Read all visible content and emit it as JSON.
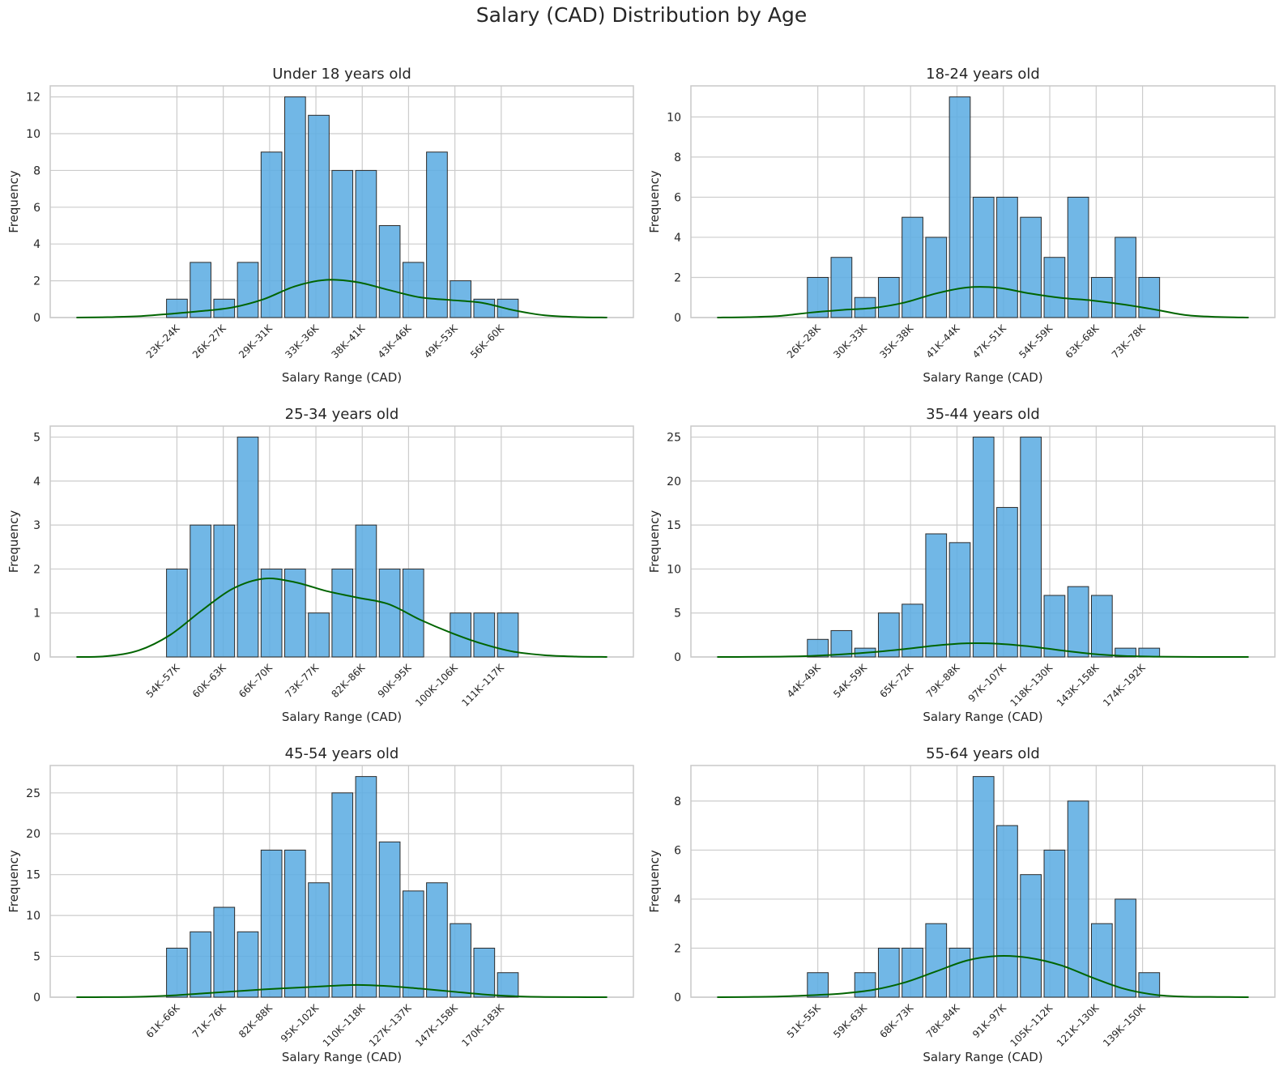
{
  "title": "Salary (CAD) Distribution by Age",
  "colors": {
    "bar_fill": "#5DADE2",
    "bar_edge": "#2b2b2b",
    "kde": "#006400",
    "grid": "#cccccc",
    "frame": "#c8c8c8"
  },
  "chart_data": [
    {
      "type": "bar",
      "title": "Under 18 years old",
      "xlabel": "Salary Range (CAD)",
      "ylabel": "Frequency",
      "ylim": [
        0,
        12.6
      ],
      "yticks": [
        0,
        2,
        4,
        6,
        8,
        10,
        12
      ],
      "tick_labels": [
        "23K–24K",
        "26K–27K",
        "29K–31K",
        "33K–36K",
        "38K–41K",
        "43K–46K",
        "49K–53K",
        "56K–60K"
      ],
      "values": [
        1,
        3,
        1,
        3,
        9,
        12,
        11,
        8,
        8,
        5,
        3,
        9,
        2,
        1,
        1
      ],
      "kde": [
        0,
        0.02,
        0.07,
        0.2,
        0.35,
        0.55,
        1.0,
        1.7,
        2.05,
        1.92,
        1.5,
        1.1,
        0.95,
        0.8,
        0.4,
        0.12,
        0.03,
        0
      ],
      "grid": true
    },
    {
      "type": "bar",
      "title": "18-24 years old",
      "xlabel": "Salary Range (CAD)",
      "ylabel": "Frequency",
      "ylim": [
        0,
        11.55
      ],
      "yticks": [
        0,
        2,
        4,
        6,
        8,
        10
      ],
      "tick_labels": [
        "26K–28K",
        "30K–33K",
        "35K–38K",
        "41K–44K",
        "47K–51K",
        "54K–59K",
        "63K–68K",
        "73K–78K"
      ],
      "values": [
        2,
        3,
        1,
        2,
        5,
        4,
        11,
        6,
        6,
        5,
        3,
        6,
        2,
        4,
        2
      ],
      "kde": [
        0,
        0.02,
        0.08,
        0.25,
        0.38,
        0.48,
        0.75,
        1.2,
        1.5,
        1.48,
        1.2,
        0.98,
        0.85,
        0.65,
        0.4,
        0.12,
        0.03,
        0
      ],
      "grid": true
    },
    {
      "type": "bar",
      "title": "25-34 years old",
      "xlabel": "Salary Range (CAD)",
      "ylabel": "Frequency",
      "ylim": [
        0,
        5.25
      ],
      "yticks": [
        0,
        1,
        2,
        3,
        4,
        5
      ],
      "tick_labels": [
        "54K–57K",
        "60K–63K",
        "66K–70K",
        "73K–77K",
        "82K–86K",
        "90K–95K",
        "100K–106K",
        "111K–117K"
      ],
      "values": [
        2,
        3,
        3,
        5,
        2,
        2,
        1,
        2,
        3,
        2,
        2,
        0,
        1,
        1,
        1
      ],
      "kde": [
        0,
        0.02,
        0.15,
        0.5,
        1.05,
        1.55,
        1.78,
        1.7,
        1.5,
        1.35,
        1.2,
        0.85,
        0.55,
        0.3,
        0.12,
        0.04,
        0.01,
        0
      ],
      "grid": true
    },
    {
      "type": "bar",
      "title": "35-44 years old",
      "xlabel": "Salary Range (CAD)",
      "ylabel": "Frequency",
      "ylim": [
        0,
        26.25
      ],
      "yticks": [
        0,
        5,
        10,
        15,
        20,
        25
      ],
      "tick_labels": [
        "44K–49K",
        "54K–59K",
        "65K–72K",
        "79K–88K",
        "97K–107K",
        "118K–130K",
        "143K–158K",
        "174K–192K"
      ],
      "values": [
        2,
        3,
        1,
        5,
        6,
        14,
        13,
        25,
        17,
        25,
        7,
        8,
        7,
        1,
        1
      ],
      "kde": [
        0,
        0.01,
        0.04,
        0.12,
        0.3,
        0.55,
        0.9,
        1.3,
        1.55,
        1.5,
        1.2,
        0.75,
        0.35,
        0.12,
        0.04,
        0.01,
        0,
        0
      ],
      "grid": true
    },
    {
      "type": "bar",
      "title": "45-54 years old",
      "xlabel": "Salary Range (CAD)",
      "ylabel": "Frequency",
      "ylim": [
        0,
        28.35
      ],
      "yticks": [
        0,
        5,
        10,
        15,
        20,
        25
      ],
      "tick_labels": [
        "61K–66K",
        "71K–76K",
        "82K–88K",
        "95K–102K",
        "110K–118K",
        "127K–137K",
        "147K–158K",
        "170K–183K"
      ],
      "values": [
        6,
        8,
        11,
        8,
        18,
        18,
        14,
        25,
        27,
        19,
        13,
        14,
        9,
        6,
        3
      ],
      "kde": [
        0,
        0.01,
        0.05,
        0.2,
        0.45,
        0.7,
        0.95,
        1.15,
        1.35,
        1.5,
        1.35,
        1.05,
        0.7,
        0.35,
        0.12,
        0.03,
        0.01,
        0
      ],
      "grid": true
    },
    {
      "type": "bar",
      "title": "55-64 years old",
      "xlabel": "Salary Range (CAD)",
      "ylabel": "Frequency",
      "ylim": [
        0,
        9.45
      ],
      "yticks": [
        0,
        2,
        4,
        6,
        8
      ],
      "tick_labels": [
        "51K–55K",
        "59K–63K",
        "68K–73K",
        "78K–84K",
        "91K–97K",
        "105K–112K",
        "121K–130K",
        "139K–150K"
      ],
      "values": [
        1,
        0,
        1,
        2,
        2,
        3,
        2,
        9,
        7,
        5,
        6,
        8,
        3,
        4,
        1
      ],
      "kde": [
        0,
        0.01,
        0.03,
        0.08,
        0.15,
        0.3,
        0.6,
        1.05,
        1.5,
        1.68,
        1.6,
        1.3,
        0.8,
        0.35,
        0.1,
        0.02,
        0.01,
        0
      ],
      "grid": true
    }
  ]
}
